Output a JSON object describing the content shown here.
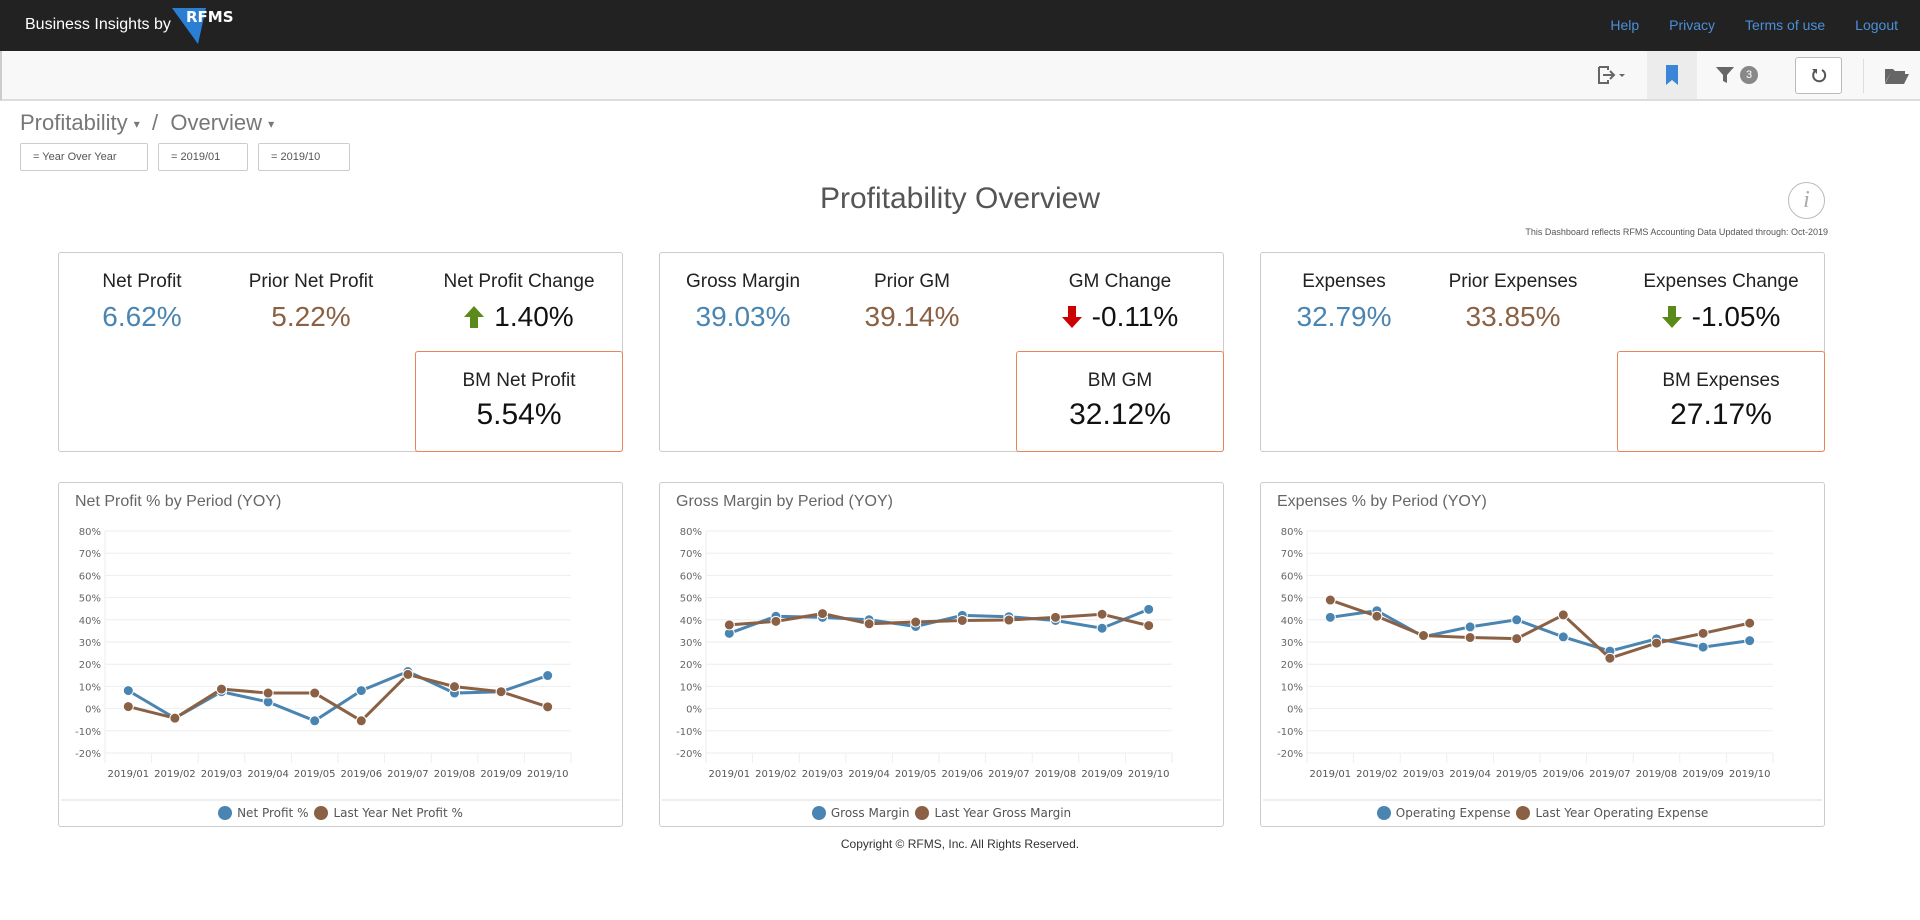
{
  "header": {
    "brand": "Business Insights by",
    "logo_text": "RFMS",
    "links": [
      "Help",
      "Privacy",
      "Terms of use",
      "Logout"
    ]
  },
  "toolbar": {
    "icons": [
      "export-icon",
      "bookmark-icon",
      "filter-icon",
      "refresh-icon",
      "folder-icon"
    ],
    "filter_count": "3"
  },
  "breadcrumb": {
    "level1": "Profitability",
    "separator": "/",
    "level2": "Overview"
  },
  "filters": [
    "= Year Over Year",
    "= 2019/01",
    "= 2019/10"
  ],
  "page": {
    "title": "Profitability Overview",
    "note": "This Dashboard reflects RFMS Accounting Data Updated through: Oct-2019",
    "info_glyph": "i"
  },
  "colors": {
    "current": "#4a85b2",
    "prior": "#8a6144",
    "up": "#5a8a1a",
    "down": "#cc0000",
    "bm_border": "#e8865a"
  },
  "kpis": [
    {
      "current_label": "Net Profit",
      "current_value": "6.62%",
      "prior_label": "Prior Net Profit",
      "prior_value": "5.22%",
      "change_label": "Net Profit Change",
      "change_value": "1.40%",
      "change_dir": "up",
      "change_color": "#5a8a1a",
      "bm_label": "BM Net Profit",
      "bm_value": "5.54%"
    },
    {
      "current_label": "Gross Margin",
      "current_value": "39.03%",
      "prior_label": "Prior GM",
      "prior_value": "39.14%",
      "change_label": "GM Change",
      "change_value": "-0.11%",
      "change_dir": "down",
      "change_color": "#cc0000",
      "bm_label": "BM GM",
      "bm_value": "32.12%"
    },
    {
      "current_label": "Expenses",
      "current_value": "32.79%",
      "prior_label": "Prior Expenses",
      "prior_value": "33.85%",
      "change_label": "Expenses Change",
      "change_value": "-1.05%",
      "change_dir": "down",
      "change_color": "#5a8a1a",
      "bm_label": "BM Expenses",
      "bm_value": "27.17%"
    }
  ],
  "chart_data": [
    {
      "type": "line",
      "title": "Net Profit % by Period (YOY)",
      "categories": [
        "2019/01",
        "2019/02",
        "2019/03",
        "2019/04",
        "2019/05",
        "2019/06",
        "2019/07",
        "2019/08",
        "2019/09",
        "2019/10"
      ],
      "ylim": [
        -20,
        80
      ],
      "yticks": [
        "80%",
        "70%",
        "60%",
        "50%",
        "40%",
        "30%",
        "20%",
        "10%",
        "0%",
        "-10%",
        "-20%"
      ],
      "grid": true,
      "legend": "bottom",
      "series": [
        {
          "name": "Net Profit %",
          "color": "#4a85b2",
          "values": [
            8.1,
            -4.3,
            7.6,
            3.0,
            -5.5,
            8.1,
            16.7,
            7.0,
            7.6,
            14.9
          ]
        },
        {
          "name": "Last Year Net Profit %",
          "color": "#8a6144",
          "values": [
            0.9,
            -4.3,
            8.8,
            7.0,
            7.0,
            -5.5,
            15.4,
            9.9,
            7.6,
            0.8
          ]
        }
      ]
    },
    {
      "type": "line",
      "title": "Gross Margin by Period (YOY)",
      "categories": [
        "2019/01",
        "2019/02",
        "2019/03",
        "2019/04",
        "2019/05",
        "2019/06",
        "2019/07",
        "2019/08",
        "2019/09",
        "2019/10"
      ],
      "ylim": [
        -20,
        80
      ],
      "yticks": [
        "80%",
        "70%",
        "60%",
        "50%",
        "40%",
        "30%",
        "20%",
        "10%",
        "0%",
        "-10%",
        "-20%"
      ],
      "grid": true,
      "legend": "bottom",
      "series": [
        {
          "name": "Gross Margin",
          "color": "#4a85b2",
          "values": [
            33.9,
            41.6,
            41.1,
            40.0,
            37.0,
            42.0,
            41.4,
            39.7,
            36.2,
            44.7
          ]
        },
        {
          "name": "Last Year Gross Margin",
          "color": "#8a6144",
          "values": [
            37.7,
            39.3,
            42.8,
            38.2,
            39.0,
            39.7,
            39.9,
            41.1,
            42.5,
            37.4
          ]
        }
      ]
    },
    {
      "type": "line",
      "title": "Expenses % by Period (YOY)",
      "categories": [
        "2019/01",
        "2019/02",
        "2019/03",
        "2019/04",
        "2019/05",
        "2019/06",
        "2019/07",
        "2019/08",
        "2019/09",
        "2019/10"
      ],
      "ylim": [
        -20,
        80
      ],
      "yticks": [
        "80%",
        "70%",
        "60%",
        "50%",
        "40%",
        "30%",
        "20%",
        "10%",
        "0%",
        "-10%",
        "-20%"
      ],
      "grid": true,
      "legend": "bottom",
      "series": [
        {
          "name": "Operating Expense",
          "color": "#4a85b2",
          "values": [
            41.1,
            44.1,
            32.4,
            36.8,
            40.0,
            32.3,
            25.9,
            31.4,
            27.7,
            30.6
          ]
        },
        {
          "name": "Last Year Operating Expense",
          "color": "#8a6144",
          "values": [
            48.9,
            41.6,
            32.9,
            32.0,
            31.5,
            42.2,
            22.7,
            29.5,
            33.9,
            38.5
          ]
        }
      ]
    }
  ],
  "footer": {
    "copyright": "Copyright © RFMS, Inc.  All Rights Reserved."
  }
}
